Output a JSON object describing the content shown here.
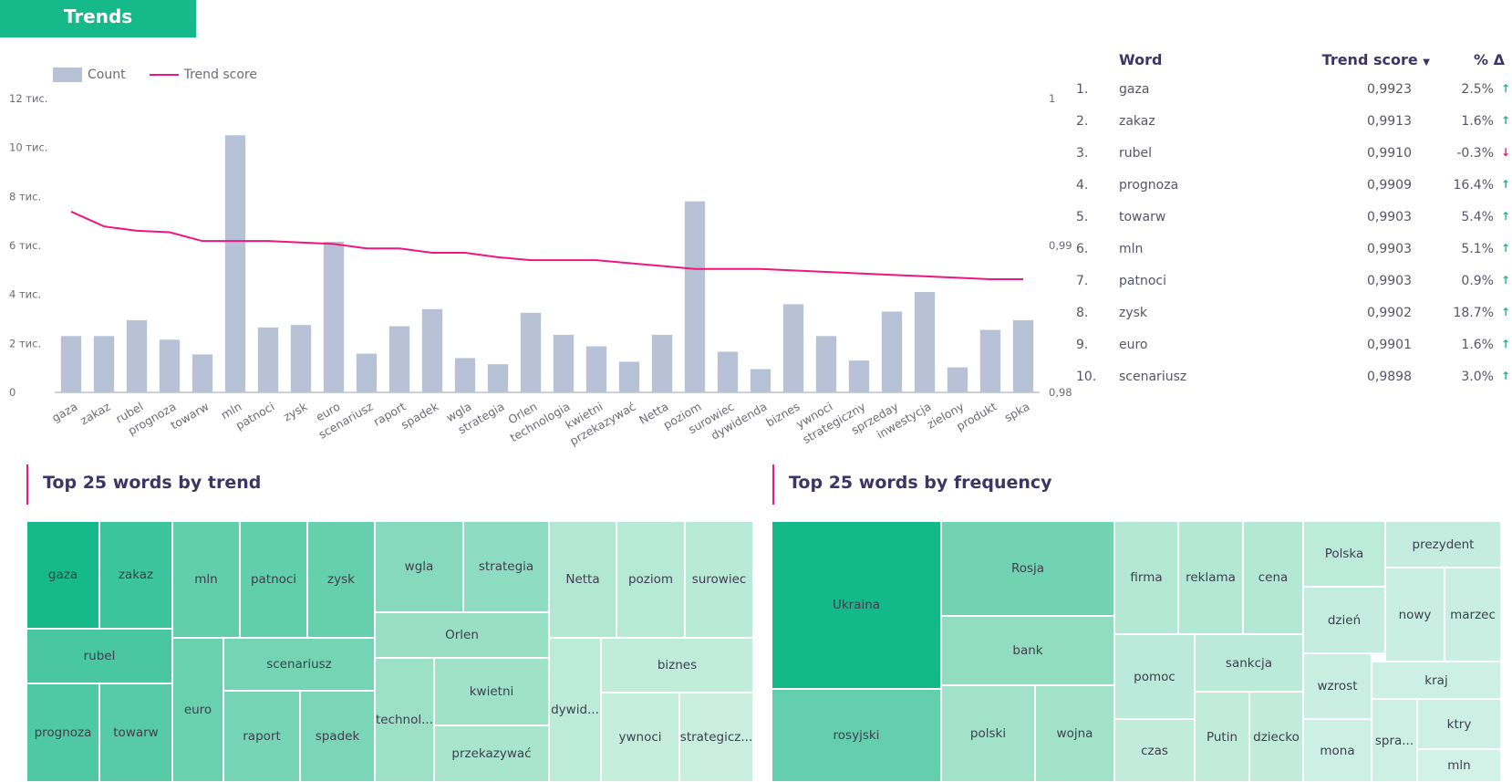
{
  "header": {
    "title": "Trends"
  },
  "legend": {
    "count_label": "Count",
    "trend_label": "Trend score"
  },
  "chart_data": {
    "type": "bar",
    "categories": [
      "gaza",
      "zakaz",
      "rubel",
      "prognoza",
      "towarw",
      "mln",
      "patnoci",
      "zysk",
      "euro",
      "scenariusz",
      "raport",
      "spadek",
      "wgla",
      "strategia",
      "Orlen",
      "technologia",
      "kwietni",
      "przekazywać",
      "Netta",
      "poziom",
      "surowiec",
      "dywidenda",
      "biznes",
      "ywnoci",
      "strategiczny",
      "sprzeday",
      "inwestycja",
      "zielony",
      "produkt",
      "spka"
    ],
    "series": [
      {
        "name": "Count",
        "type": "bar",
        "axis": "left",
        "values": [
          2300,
          2300,
          2950,
          2150,
          1550,
          10500,
          2650,
          2750,
          6150,
          1580,
          2700,
          3400,
          1400,
          1150,
          3250,
          2350,
          1880,
          1250,
          2350,
          7800,
          1660,
          950,
          3600,
          2300,
          1300,
          3300,
          4100,
          1020,
          2550,
          2950
        ]
      },
      {
        "name": "Trend score",
        "type": "line",
        "axis": "right",
        "values": [
          0.9923,
          0.9913,
          0.991,
          0.9909,
          0.9903,
          0.9903,
          0.9903,
          0.9902,
          0.9901,
          0.9898,
          0.9898,
          0.9895,
          0.9895,
          0.9892,
          0.989,
          0.989,
          0.989,
          0.9888,
          0.9886,
          0.9884,
          0.9884,
          0.9884,
          0.9883,
          0.9882,
          0.9881,
          0.988,
          0.9879,
          0.9878,
          0.9877,
          0.9877
        ]
      }
    ],
    "left_axis": {
      "ylim": [
        0,
        12000
      ],
      "ticks": [
        0,
        2000,
        4000,
        6000,
        8000,
        10000,
        12000
      ],
      "tick_labels": [
        "0",
        "2 тис.",
        "4 тис.",
        "6 тис.",
        "8 тис.",
        "10 тис.",
        "12 тис."
      ]
    },
    "right_axis": {
      "ylim": [
        0.98,
        1
      ],
      "ticks": [
        0.98,
        0.99,
        1
      ],
      "tick_labels": [
        "0,98",
        "0,99",
        "1"
      ]
    },
    "colors": {
      "bar": "#b8c2d6",
      "line": "#f0157f"
    }
  },
  "table": {
    "headers": {
      "word": "Word",
      "score": "Trend score",
      "pct": "% Δ"
    },
    "rows": [
      {
        "idx": "1.",
        "word": "gaza",
        "score": "0,9923",
        "pct": "2.5%",
        "dir": "up"
      },
      {
        "idx": "2.",
        "word": "zakaz",
        "score": "0,9913",
        "pct": "1.6%",
        "dir": "up"
      },
      {
        "idx": "3.",
        "word": "rubel",
        "score": "0,9910",
        "pct": "-0.3%",
        "dir": "down"
      },
      {
        "idx": "4.",
        "word": "prognoza",
        "score": "0,9909",
        "pct": "16.4%",
        "dir": "up"
      },
      {
        "idx": "5.",
        "word": "towarw",
        "score": "0,9903",
        "pct": "5.4%",
        "dir": "up"
      },
      {
        "idx": "6.",
        "word": "mln",
        "score": "0,9903",
        "pct": "5.1%",
        "dir": "up"
      },
      {
        "idx": "7.",
        "word": "patnoci",
        "score": "0,9903",
        "pct": "0.9%",
        "dir": "up"
      },
      {
        "idx": "8.",
        "word": "zysk",
        "score": "0,9902",
        "pct": "18.7%",
        "dir": "up"
      },
      {
        "idx": "9.",
        "word": "euro",
        "score": "0,9901",
        "pct": "1.6%",
        "dir": "up"
      },
      {
        "idx": "10.",
        "word": "scenariusz",
        "score": "0,9898",
        "pct": "3.0%",
        "dir": "up"
      }
    ]
  },
  "sections": {
    "trend_title": "Top 25 words by trend",
    "freq_title": "Top 25 words by frequency"
  },
  "treemap_trend": [
    {
      "label": "gaza",
      "color": "#16b98a"
    },
    {
      "label": "zakaz",
      "color": "#3cc49c"
    },
    {
      "label": "rubel",
      "color": "#48c7a0"
    },
    {
      "label": "prognoza",
      "color": "#4fc9a3"
    },
    {
      "label": "towarw",
      "color": "#56cba6"
    },
    {
      "label": "mln",
      "color": "#62cfab"
    },
    {
      "label": "patnoci",
      "color": "#62cfab"
    },
    {
      "label": "zysk",
      "color": "#66d0ad"
    },
    {
      "label": "euro",
      "color": "#6ad1af"
    },
    {
      "label": "scenariusz",
      "color": "#74d4b4"
    },
    {
      "label": "raport",
      "color": "#76d5b5"
    },
    {
      "label": "spadek",
      "color": "#7ad6b7"
    },
    {
      "label": "wgla",
      "color": "#86d9bd"
    },
    {
      "label": "strategia",
      "color": "#8edcc1"
    },
    {
      "label": "Orlen",
      "color": "#98dfc6"
    },
    {
      "label": "technol...",
      "color": "#9de0c8"
    },
    {
      "label": "kwietni",
      "color": "#a0e1ca"
    },
    {
      "label": "przekazywać",
      "color": "#a8e4ce"
    },
    {
      "label": "Netta",
      "color": "#b1e7d3"
    },
    {
      "label": "poziom",
      "color": "#b6e9d6"
    },
    {
      "label": "surowiec",
      "color": "#b9e9d7"
    },
    {
      "label": "dywid...",
      "color": "#bdebda"
    },
    {
      "label": "biznes",
      "color": "#c0ecdb"
    },
    {
      "label": "ywnoci",
      "color": "#c6eedf"
    },
    {
      "label": "strategicz...",
      "color": "#caefe1"
    }
  ],
  "treemap_freq": [
    {
      "label": "Ukraina",
      "color": "#14b98a"
    },
    {
      "label": "rosyjski",
      "color": "#64cfac"
    },
    {
      "label": "Rosja",
      "color": "#72d3b3"
    },
    {
      "label": "bank",
      "color": "#92ddc2"
    },
    {
      "label": "polski",
      "color": "#a2e2cb"
    },
    {
      "label": "wojna",
      "color": "#a2e2cb"
    },
    {
      "label": "firma",
      "color": "#b3e8d4"
    },
    {
      "label": "reklama",
      "color": "#b3e8d4"
    },
    {
      "label": "cena",
      "color": "#b3e8d4"
    },
    {
      "label": "pomoc",
      "color": "#bbeada"
    },
    {
      "label": "sankcja",
      "color": "#bbeada"
    },
    {
      "label": "czas",
      "color": "#c1ecdc"
    },
    {
      "label": "Putin",
      "color": "#c1ecdc"
    },
    {
      "label": "dziecko",
      "color": "#c1ecdc"
    },
    {
      "label": "Polska",
      "color": "#bdebda"
    },
    {
      "label": "prezydent",
      "color": "#c4eddf"
    },
    {
      "label": "dzień",
      "color": "#c4eddf"
    },
    {
      "label": "nowy",
      "color": "#c9efe2"
    },
    {
      "label": "marzec",
      "color": "#c9efe2"
    },
    {
      "label": "wzrost",
      "color": "#c9efe2"
    },
    {
      "label": "kraj",
      "color": "#cdf0e4"
    },
    {
      "label": "spra...",
      "color": "#cdf0e4"
    },
    {
      "label": "ktry",
      "color": "#cdf0e4"
    },
    {
      "label": "mona",
      "color": "#cdf0e4"
    },
    {
      "label": "mln",
      "color": "#d2f2e7"
    }
  ]
}
